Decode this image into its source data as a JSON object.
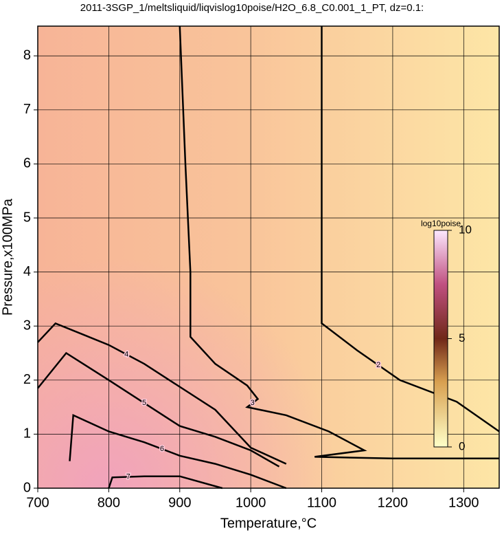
{
  "chart_data": {
    "type": "contour",
    "title": "2011-3SGP_1/meltsliquid/liqvislog10poise/H2O_6.8_C0.001_1_PT, dz=0.1:",
    "x_label": "Temperature,°C",
    "y_label": "Pressure,x100MPa",
    "xlim": [
      700,
      1350
    ],
    "ylim": [
      0,
      8.55
    ],
    "xticks": [
      700,
      800,
      900,
      1000,
      1100,
      1200,
      1300
    ],
    "yticks": [
      0,
      1,
      2,
      3,
      4,
      5,
      6,
      7,
      8
    ],
    "grid": true,
    "colorbar": {
      "label": "log10poise",
      "lim": [
        0,
        10
      ],
      "ticks": [
        0,
        5,
        10
      ]
    },
    "contours": [
      {
        "level": 2,
        "x": [
          1100,
          1100,
          1150,
          1210,
          1290,
          1350
        ],
        "y": [
          8.55,
          3.05,
          2.55,
          2.0,
          1.6,
          1.05
        ]
      },
      {
        "level": 3,
        "x": [
          900,
          908,
          915,
          915,
          950,
          995,
          1010,
          995,
          1050,
          1110,
          1160,
          1090,
          1200,
          1350
        ],
        "y": [
          8.55,
          6.0,
          4.0,
          2.8,
          2.3,
          1.9,
          1.65,
          1.5,
          1.35,
          1.05,
          0.7,
          0.58,
          0.55,
          0.55
        ]
      },
      {
        "level": 4,
        "x": [
          700,
          725,
          800,
          850,
          950,
          1000,
          1050
        ],
        "y": [
          2.7,
          3.05,
          2.65,
          2.3,
          1.45,
          0.75,
          0.45
        ]
      },
      {
        "level": 5,
        "x": [
          700,
          740,
          800,
          900,
          950,
          1000,
          1040
        ],
        "y": [
          1.85,
          2.5,
          2.0,
          1.15,
          0.95,
          0.7,
          0.4
        ]
      },
      {
        "level": 6,
        "x": [
          745,
          750,
          800,
          850,
          900,
          950,
          1000,
          1050
        ],
        "y": [
          0.5,
          1.35,
          1.05,
          0.85,
          0.6,
          0.45,
          0.25,
          0.0
        ]
      },
      {
        "level": 7,
        "x": [
          800,
          805,
          850,
          900,
          960
        ],
        "y": [
          0.0,
          0.2,
          0.22,
          0.22,
          0.0
        ]
      }
    ]
  }
}
